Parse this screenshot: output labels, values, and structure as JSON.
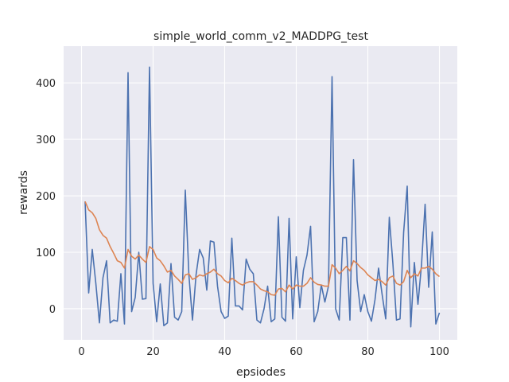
{
  "chart_data": {
    "type": "line",
    "title": "simple_world_comm_v2_MADDPG_test",
    "xlabel": "epsiodes",
    "ylabel": "rewards",
    "xlim": [
      -5,
      105
    ],
    "ylim": [
      -55,
      465
    ],
    "xticks": [
      0,
      20,
      40,
      60,
      80,
      100
    ],
    "yticks": [
      0,
      100,
      200,
      300,
      400
    ],
    "grid": true,
    "background": "#eaeaf2",
    "series": [
      {
        "color": "#4c72b0",
        "x": [
          1,
          2,
          3,
          4,
          5,
          6,
          7,
          8,
          9,
          10,
          11,
          12,
          13,
          14,
          15,
          16,
          17,
          18,
          19,
          20,
          21,
          22,
          23,
          24,
          25,
          26,
          27,
          28,
          29,
          30,
          31,
          32,
          33,
          34,
          35,
          36,
          37,
          38,
          39,
          40,
          41,
          42,
          43,
          44,
          45,
          46,
          47,
          48,
          49,
          50,
          51,
          52,
          53,
          54,
          55,
          56,
          57,
          58,
          59,
          60,
          61,
          62,
          63,
          64,
          65,
          66,
          67,
          68,
          69,
          70,
          71,
          72,
          73,
          74,
          75,
          76,
          77,
          78,
          79,
          80,
          81,
          82,
          83,
          84,
          85,
          86,
          87,
          88,
          89,
          90,
          91,
          92,
          93,
          94,
          95,
          96,
          97,
          98,
          99,
          100
        ],
        "values": [
          190,
          28,
          105,
          45,
          -25,
          55,
          85,
          -25,
          -20,
          -22,
          62,
          -27,
          418,
          -5,
          20,
          100,
          17,
          18,
          428,
          45,
          -23,
          44,
          -30,
          -25,
          80,
          -15,
          -20,
          -5,
          210,
          60,
          -20,
          60,
          105,
          90,
          33,
          120,
          118,
          40,
          -5,
          -17,
          -13,
          125,
          5,
          5,
          -2,
          88,
          70,
          62,
          -20,
          -25,
          0,
          40,
          -23,
          -18,
          163,
          -15,
          -22,
          160,
          -18,
          92,
          2,
          68,
          95,
          146,
          -23,
          -5,
          42,
          12,
          40,
          411,
          0,
          -20,
          126,
          126,
          -20,
          264,
          50,
          -5,
          25,
          -5,
          -22,
          16,
          72,
          25,
          -18,
          162,
          80,
          -20,
          -18,
          135,
          217,
          -32,
          82,
          8,
          78,
          185,
          38,
          136,
          -27,
          -7
        ]
      },
      {
        "color": "#dd8452",
        "x": [
          1,
          2,
          3,
          4,
          5,
          6,
          7,
          8,
          9,
          10,
          11,
          12,
          13,
          14,
          15,
          16,
          17,
          18,
          19,
          20,
          21,
          22,
          23,
          24,
          25,
          26,
          27,
          28,
          29,
          30,
          31,
          32,
          33,
          34,
          35,
          36,
          37,
          38,
          39,
          40,
          41,
          42,
          43,
          44,
          45,
          46,
          47,
          48,
          49,
          50,
          51,
          52,
          53,
          54,
          55,
          56,
          57,
          58,
          59,
          60,
          61,
          62,
          63,
          64,
          65,
          66,
          67,
          68,
          69,
          70,
          71,
          72,
          73,
          74,
          75,
          76,
          77,
          78,
          79,
          80,
          81,
          82,
          83,
          84,
          85,
          86,
          87,
          88,
          89,
          90,
          91,
          92,
          93,
          94,
          95,
          96,
          97,
          98,
          99,
          100
        ],
        "values": [
          190,
          175,
          170,
          160,
          140,
          130,
          125,
          110,
          98,
          85,
          82,
          72,
          105,
          93,
          88,
          95,
          88,
          82,
          110,
          105,
          90,
          85,
          76,
          65,
          68,
          58,
          52,
          45,
          60,
          62,
          52,
          55,
          60,
          58,
          62,
          65,
          70,
          62,
          58,
          50,
          46,
          54,
          50,
          45,
          42,
          46,
          48,
          48,
          42,
          35,
          32,
          30,
          25,
          24,
          35,
          36,
          30,
          42,
          35,
          42,
          40,
          40,
          45,
          55,
          47,
          43,
          42,
          40,
          40,
          78,
          72,
          62,
          68,
          75,
          67,
          85,
          80,
          73,
          68,
          60,
          55,
          50,
          52,
          48,
          42,
          55,
          58,
          45,
          42,
          48,
          68,
          55,
          62,
          58,
          72,
          72,
          75,
          70,
          62,
          57
        ]
      }
    ]
  }
}
